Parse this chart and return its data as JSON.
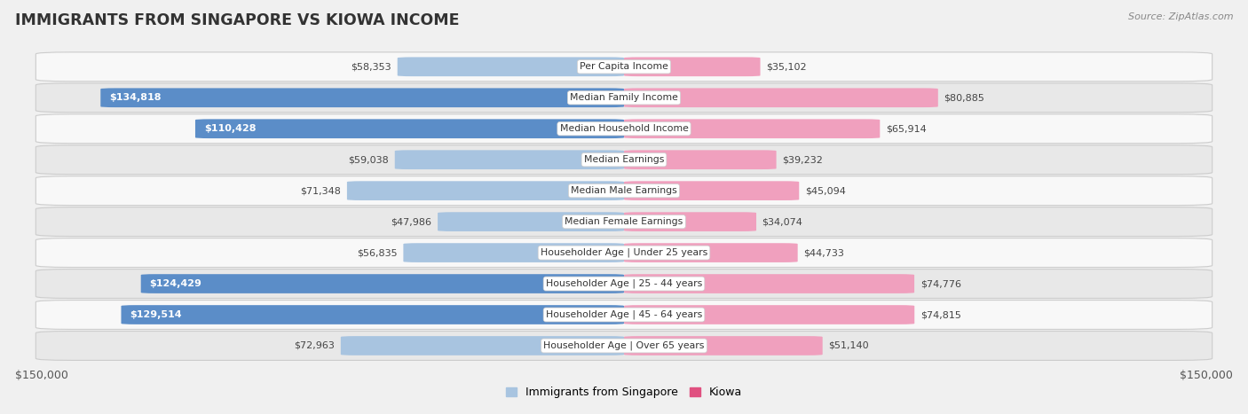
{
  "title": "IMMIGRANTS FROM SINGAPORE VS KIOWA INCOME",
  "source": "Source: ZipAtlas.com",
  "categories": [
    "Per Capita Income",
    "Median Family Income",
    "Median Household Income",
    "Median Earnings",
    "Median Male Earnings",
    "Median Female Earnings",
    "Householder Age | Under 25 years",
    "Householder Age | 25 - 44 years",
    "Householder Age | 45 - 64 years",
    "Householder Age | Over 65 years"
  ],
  "singapore_values": [
    58353,
    134818,
    110428,
    59038,
    71348,
    47986,
    56835,
    124429,
    129514,
    72963
  ],
  "kiowa_values": [
    35102,
    80885,
    65914,
    39232,
    45094,
    34074,
    44733,
    74776,
    74815,
    51140
  ],
  "singapore_labels": [
    "$58,353",
    "$134,818",
    "$110,428",
    "$59,038",
    "$71,348",
    "$47,986",
    "$56,835",
    "$124,429",
    "$129,514",
    "$72,963"
  ],
  "kiowa_labels": [
    "$35,102",
    "$80,885",
    "$65,914",
    "$39,232",
    "$45,094",
    "$34,074",
    "$44,733",
    "$74,776",
    "$74,815",
    "$51,140"
  ],
  "singapore_color_strong": "#5B8DC8",
  "singapore_color_light": "#A8C4E0",
  "kiowa_color_strong": "#E05080",
  "kiowa_color_light": "#F0A0BE",
  "max_value": 150000,
  "background_color": "#f0f0f0",
  "row_bg_light": "#f8f8f8",
  "row_bg_dark": "#e8e8e8",
  "legend_singapore": "Immigrants from Singapore",
  "legend_kiowa": "Kiowa",
  "threshold": 100000
}
